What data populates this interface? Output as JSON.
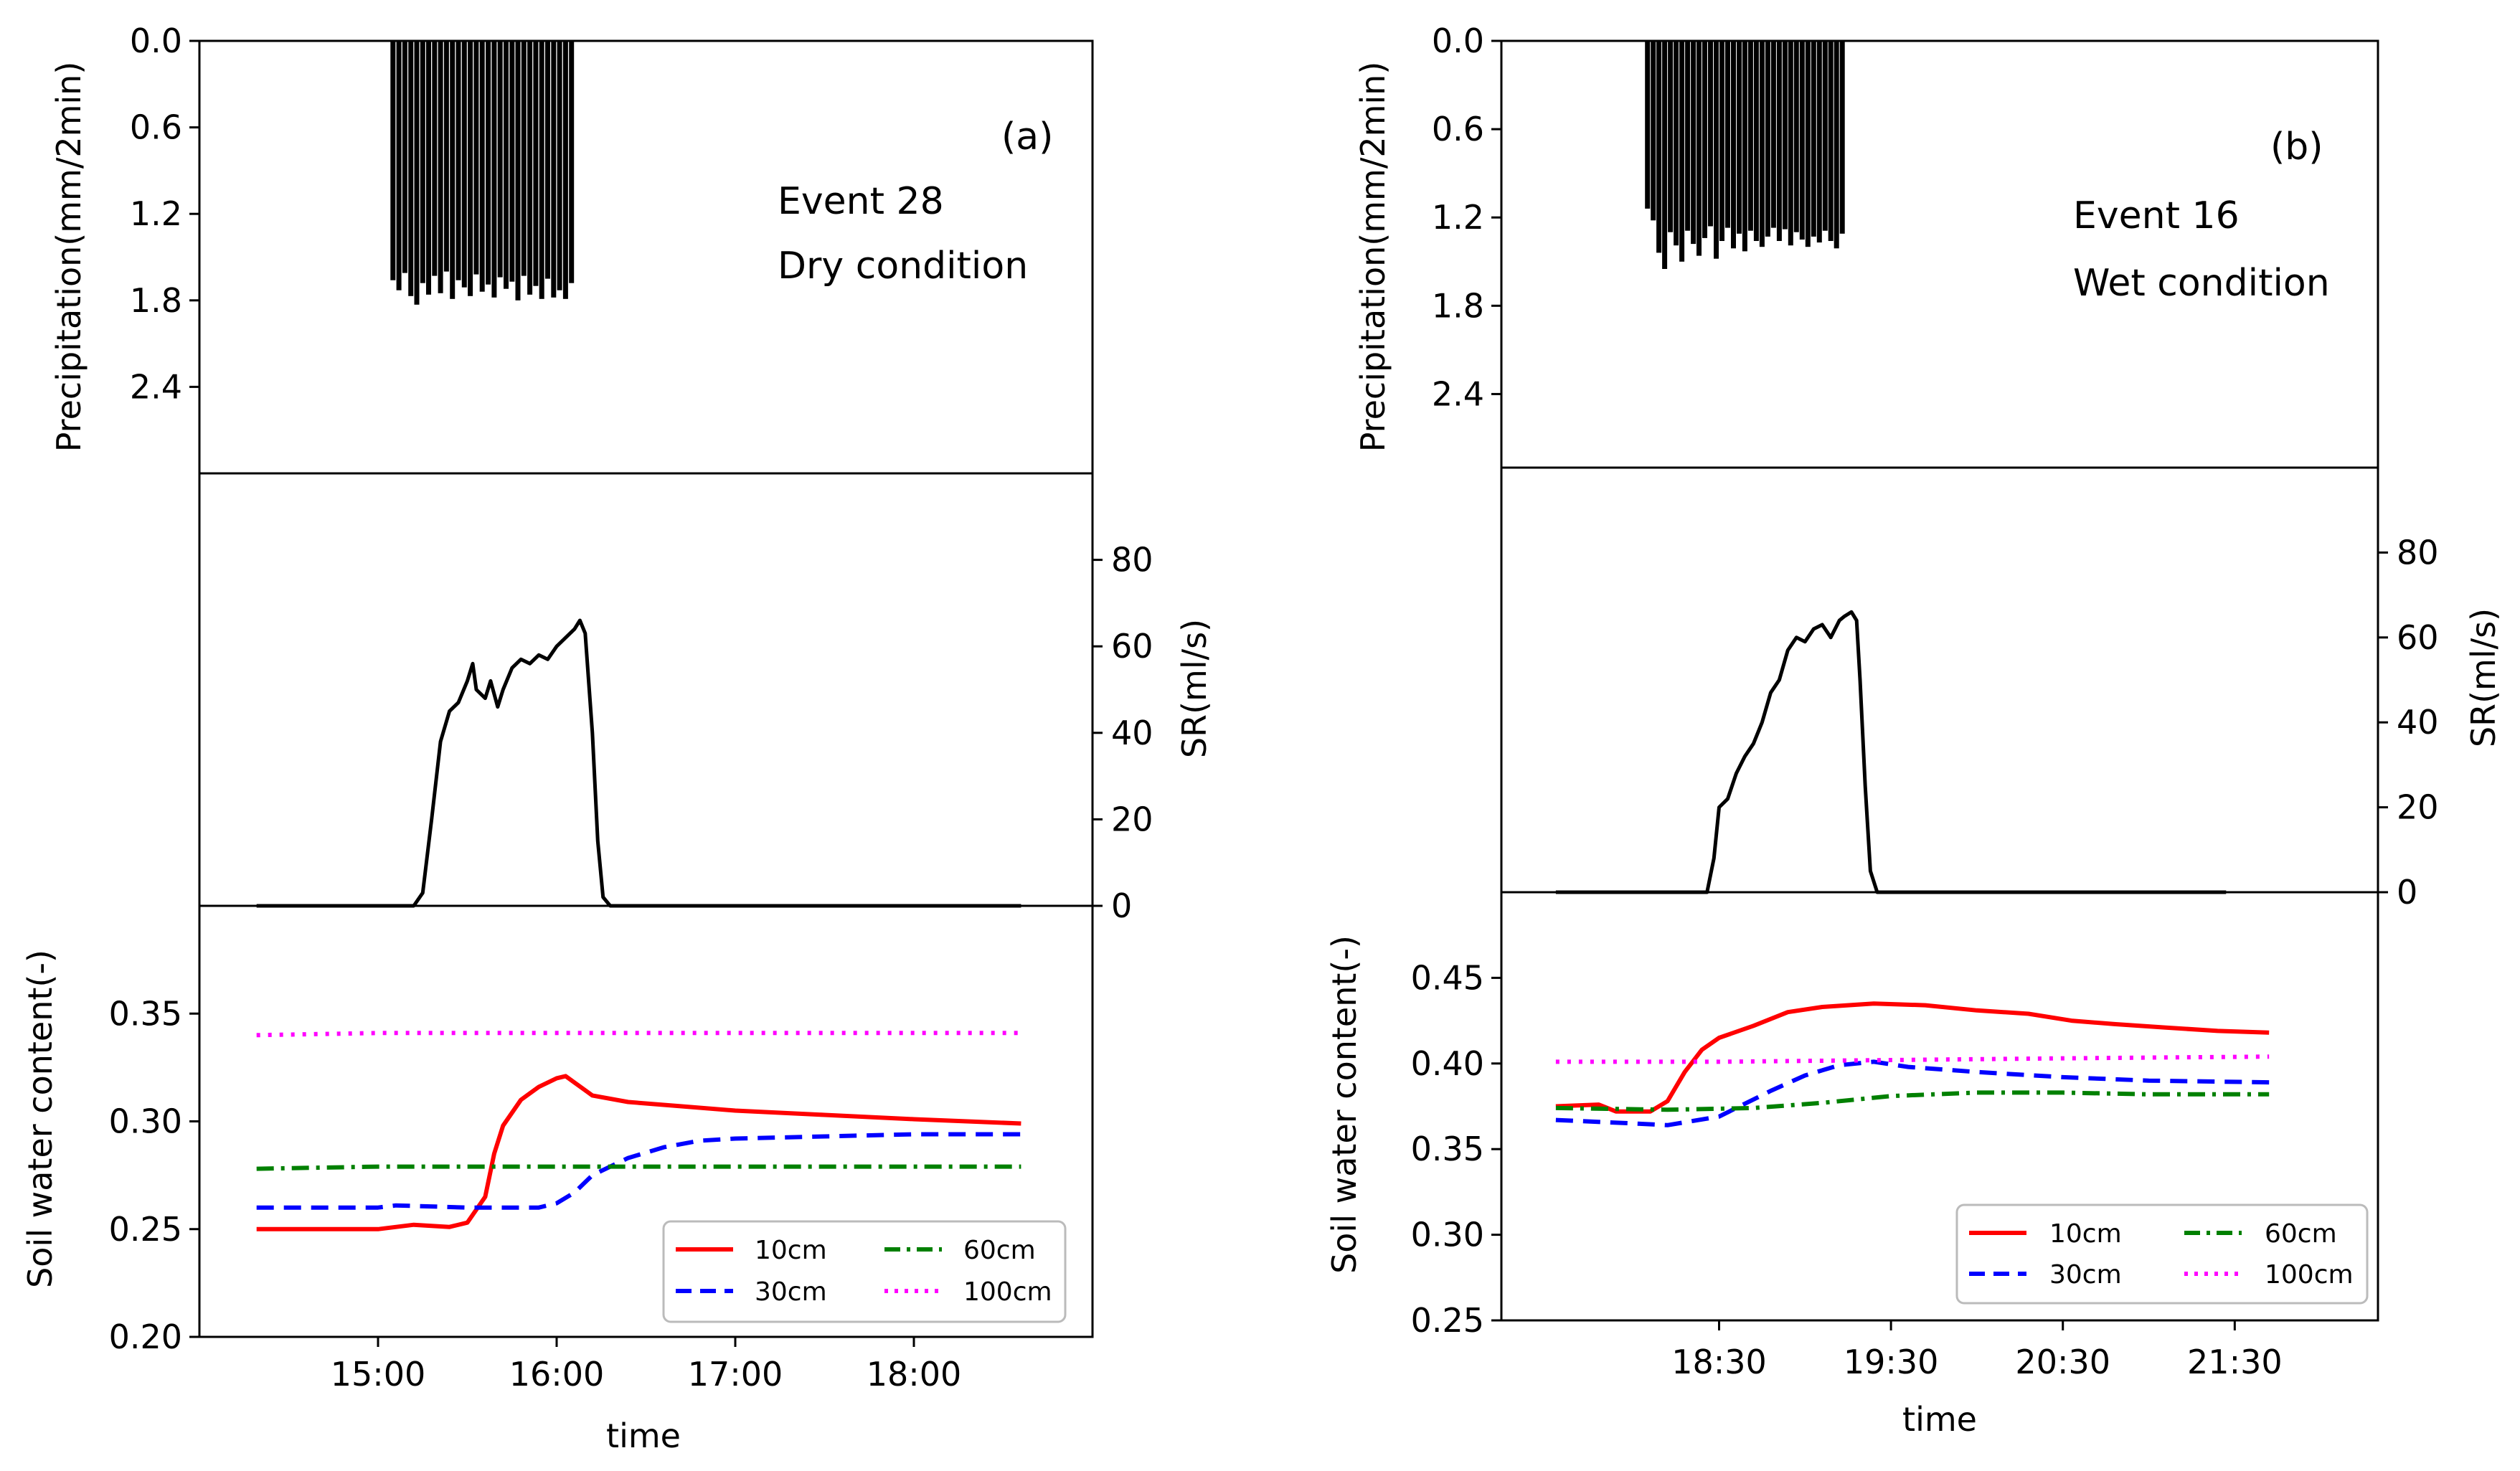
{
  "chart_data": [
    {
      "panel": "a",
      "type": "composite",
      "panel_label": "(a)",
      "event_label": "Event 28",
      "condition_label": "Dry condition",
      "time_axis": {
        "label": "time",
        "ticks": [
          "15:00",
          "16:00",
          "17:00",
          "18:00"
        ],
        "range_hours": [
          "14:00",
          "19:00"
        ],
        "tick_hours": [
          15,
          16,
          17,
          18
        ]
      },
      "precipitation": {
        "type": "bar",
        "ylabel": "Precipitation(mm/2min)",
        "ylim": [
          0,
          3.0
        ],
        "inverted": true,
        "yticks": [
          "0.0",
          "0.6",
          "1.2",
          "1.8",
          "2.4"
        ],
        "ytick_values": [
          0,
          0.6,
          1.2,
          1.8,
          2.4
        ],
        "t_start": "15:05",
        "t_end": "16:05",
        "interval_min": 2,
        "values": [
          1.66,
          1.73,
          1.61,
          1.77,
          1.83,
          1.68,
          1.76,
          1.63,
          1.75,
          1.6,
          1.79,
          1.66,
          1.71,
          1.77,
          1.62,
          1.74,
          1.69,
          1.78,
          1.64,
          1.72,
          1.67,
          1.8,
          1.63,
          1.76,
          1.7,
          1.79,
          1.65,
          1.78,
          1.73,
          1.79,
          1.68
        ]
      },
      "surface_runoff": {
        "type": "line",
        "ylabel": "SR(ml/s)",
        "ylim": [
          0,
          100
        ],
        "yticks": [
          "0",
          "20",
          "40",
          "60",
          "80"
        ],
        "ytick_values": [
          0,
          20,
          40,
          60,
          80
        ],
        "points": [
          [
            14.32,
            0
          ],
          [
            15.2,
            0
          ],
          [
            15.25,
            3
          ],
          [
            15.3,
            20
          ],
          [
            15.35,
            38
          ],
          [
            15.4,
            45
          ],
          [
            15.45,
            47
          ],
          [
            15.5,
            52
          ],
          [
            15.53,
            56
          ],
          [
            15.55,
            50
          ],
          [
            15.6,
            48
          ],
          [
            15.63,
            52
          ],
          [
            15.67,
            46
          ],
          [
            15.7,
            50
          ],
          [
            15.75,
            55
          ],
          [
            15.8,
            57
          ],
          [
            15.85,
            56
          ],
          [
            15.9,
            58
          ],
          [
            15.95,
            57
          ],
          [
            16.0,
            60
          ],
          [
            16.05,
            62
          ],
          [
            16.1,
            64
          ],
          [
            16.13,
            66
          ],
          [
            16.16,
            63
          ],
          [
            16.2,
            40
          ],
          [
            16.23,
            15
          ],
          [
            16.26,
            2
          ],
          [
            16.3,
            0
          ],
          [
            18.6,
            0
          ]
        ]
      },
      "soil_water": {
        "type": "line",
        "ylabel": "Soil water content(-)",
        "ylim": [
          0.2,
          0.4
        ],
        "yticks": [
          "0.20",
          "0.25",
          "0.30",
          "0.35"
        ],
        "ytick_values": [
          0.2,
          0.25,
          0.3,
          0.35
        ],
        "legend": [
          "10cm",
          "30cm",
          "60cm",
          "100cm"
        ],
        "series": [
          {
            "name": "10cm",
            "color": "#ff0000",
            "style": "solid",
            "points": [
              [
                14.32,
                0.25
              ],
              [
                15.0,
                0.25
              ],
              [
                15.2,
                0.252
              ],
              [
                15.4,
                0.251
              ],
              [
                15.5,
                0.253
              ],
              [
                15.6,
                0.265
              ],
              [
                15.65,
                0.285
              ],
              [
                15.7,
                0.298
              ],
              [
                15.8,
                0.31
              ],
              [
                15.9,
                0.316
              ],
              [
                16.0,
                0.32
              ],
              [
                16.05,
                0.321
              ],
              [
                16.1,
                0.318
              ],
              [
                16.2,
                0.312
              ],
              [
                16.4,
                0.309
              ],
              [
                16.7,
                0.307
              ],
              [
                17.0,
                0.305
              ],
              [
                17.5,
                0.303
              ],
              [
                18.0,
                0.301
              ],
              [
                18.6,
                0.299
              ]
            ]
          },
          {
            "name": "30cm",
            "color": "#0000ff",
            "style": "dashed",
            "points": [
              [
                14.32,
                0.26
              ],
              [
                15.0,
                0.26
              ],
              [
                15.1,
                0.261
              ],
              [
                15.5,
                0.26
              ],
              [
                15.7,
                0.26
              ],
              [
                15.9,
                0.26
              ],
              [
                16.0,
                0.262
              ],
              [
                16.1,
                0.267
              ],
              [
                16.2,
                0.275
              ],
              [
                16.4,
                0.283
              ],
              [
                16.6,
                0.288
              ],
              [
                16.8,
                0.291
              ],
              [
                17.0,
                0.292
              ],
              [
                17.5,
                0.293
              ],
              [
                18.0,
                0.294
              ],
              [
                18.6,
                0.294
              ]
            ]
          },
          {
            "name": "60cm",
            "color": "#008000",
            "style": "dashdot",
            "points": [
              [
                14.32,
                0.278
              ],
              [
                15.0,
                0.279
              ],
              [
                16.0,
                0.279
              ],
              [
                17.0,
                0.279
              ],
              [
                18.0,
                0.279
              ],
              [
                18.6,
                0.279
              ]
            ]
          },
          {
            "name": "100cm",
            "color": "#ff00ff",
            "style": "dotted",
            "points": [
              [
                14.32,
                0.34
              ],
              [
                15.0,
                0.341
              ],
              [
                16.0,
                0.341
              ],
              [
                17.0,
                0.341
              ],
              [
                18.0,
                0.341
              ],
              [
                18.6,
                0.341
              ]
            ]
          }
        ]
      }
    },
    {
      "panel": "b",
      "type": "composite",
      "panel_label": "(b)",
      "event_label": "Event 16",
      "condition_label": "Wet condition",
      "time_axis": {
        "label": "time",
        "ticks": [
          "18:30",
          "19:30",
          "20:30",
          "21:30"
        ],
        "range_hours": [
          "17:14",
          "22:20"
        ],
        "tick_hours": [
          18.5,
          19.5,
          20.5,
          21.5
        ]
      },
      "precipitation": {
        "type": "bar",
        "ylabel": "Precipitation(mm/2min)",
        "ylim": [
          0,
          2.9
        ],
        "inverted": true,
        "yticks": [
          "0.0",
          "0.6",
          "1.2",
          "1.8",
          "2.4"
        ],
        "ytick_values": [
          0,
          0.6,
          1.2,
          1.8,
          2.4
        ],
        "t_start": "18:05",
        "t_end": "19:13",
        "interval_min": 2,
        "values": [
          1.14,
          1.22,
          1.44,
          1.55,
          1.3,
          1.39,
          1.5,
          1.29,
          1.38,
          1.46,
          1.34,
          1.26,
          1.48,
          1.36,
          1.27,
          1.41,
          1.31,
          1.43,
          1.29,
          1.36,
          1.4,
          1.33,
          1.27,
          1.36,
          1.28,
          1.39,
          1.3,
          1.35,
          1.4,
          1.33,
          1.37,
          1.29,
          1.36,
          1.41,
          1.31
        ]
      },
      "surface_runoff": {
        "type": "line",
        "ylabel": "SR(ml/s)",
        "ylim": [
          0,
          100
        ],
        "yticks": [
          "0",
          "20",
          "40",
          "60",
          "80"
        ],
        "ytick_values": [
          0,
          20,
          40,
          60,
          80
        ],
        "points": [
          [
            17.55,
            0
          ],
          [
            18.43,
            0
          ],
          [
            18.47,
            8
          ],
          [
            18.5,
            20
          ],
          [
            18.55,
            22
          ],
          [
            18.6,
            28
          ],
          [
            18.65,
            32
          ],
          [
            18.7,
            35
          ],
          [
            18.75,
            40
          ],
          [
            18.8,
            47
          ],
          [
            18.85,
            50
          ],
          [
            18.9,
            57
          ],
          [
            18.95,
            60
          ],
          [
            19.0,
            59
          ],
          [
            19.05,
            62
          ],
          [
            19.1,
            63
          ],
          [
            19.15,
            60
          ],
          [
            19.2,
            64
          ],
          [
            19.23,
            65
          ],
          [
            19.27,
            66
          ],
          [
            19.3,
            64
          ],
          [
            19.32,
            50
          ],
          [
            19.35,
            25
          ],
          [
            19.38,
            5
          ],
          [
            19.42,
            0
          ],
          [
            21.45,
            0
          ]
        ]
      },
      "soil_water": {
        "type": "line",
        "ylabel": "Soil water content(-)",
        "ylim": [
          0.25,
          0.5
        ],
        "yticks": [
          "0.25",
          "0.30",
          "0.35",
          "0.40",
          "0.45"
        ],
        "ytick_values": [
          0.25,
          0.3,
          0.35,
          0.4,
          0.45
        ],
        "legend": [
          "10cm",
          "30cm",
          "60cm",
          "100cm"
        ],
        "series": [
          {
            "name": "10cm",
            "color": "#ff0000",
            "style": "solid",
            "points": [
              [
                17.55,
                0.375
              ],
              [
                17.8,
                0.376
              ],
              [
                17.9,
                0.372
              ],
              [
                18.1,
                0.372
              ],
              [
                18.2,
                0.378
              ],
              [
                18.3,
                0.395
              ],
              [
                18.4,
                0.408
              ],
              [
                18.5,
                0.415
              ],
              [
                18.7,
                0.422
              ],
              [
                18.9,
                0.43
              ],
              [
                19.1,
                0.433
              ],
              [
                19.4,
                0.435
              ],
              [
                19.7,
                0.434
              ],
              [
                20.0,
                0.431
              ],
              [
                20.3,
                0.429
              ],
              [
                20.55,
                0.425
              ],
              [
                20.8,
                0.423
              ],
              [
                21.1,
                0.421
              ],
              [
                21.4,
                0.419
              ],
              [
                21.7,
                0.418
              ]
            ]
          },
          {
            "name": "30cm",
            "color": "#0000ff",
            "style": "dashed",
            "points": [
              [
                17.55,
                0.367
              ],
              [
                18.0,
                0.365
              ],
              [
                18.2,
                0.364
              ],
              [
                18.5,
                0.369
              ],
              [
                18.8,
                0.384
              ],
              [
                19.0,
                0.393
              ],
              [
                19.2,
                0.399
              ],
              [
                19.4,
                0.401
              ],
              [
                19.6,
                0.398
              ],
              [
                20.0,
                0.395
              ],
              [
                20.5,
                0.392
              ],
              [
                21.0,
                0.39
              ],
              [
                21.7,
                0.389
              ]
            ]
          },
          {
            "name": "60cm",
            "color": "#008000",
            "style": "dashdot",
            "points": [
              [
                17.55,
                0.374
              ],
              [
                18.2,
                0.373
              ],
              [
                18.7,
                0.374
              ],
              [
                19.1,
                0.377
              ],
              [
                19.5,
                0.381
              ],
              [
                20.0,
                0.383
              ],
              [
                20.5,
                0.383
              ],
              [
                21.0,
                0.382
              ],
              [
                21.7,
                0.382
              ]
            ]
          },
          {
            "name": "100cm",
            "color": "#ff00ff",
            "style": "dotted",
            "points": [
              [
                17.55,
                0.401
              ],
              [
                18.5,
                0.401
              ],
              [
                19.5,
                0.402
              ],
              [
                20.5,
                0.403
              ],
              [
                21.7,
                0.404
              ]
            ]
          }
        ]
      }
    }
  ]
}
